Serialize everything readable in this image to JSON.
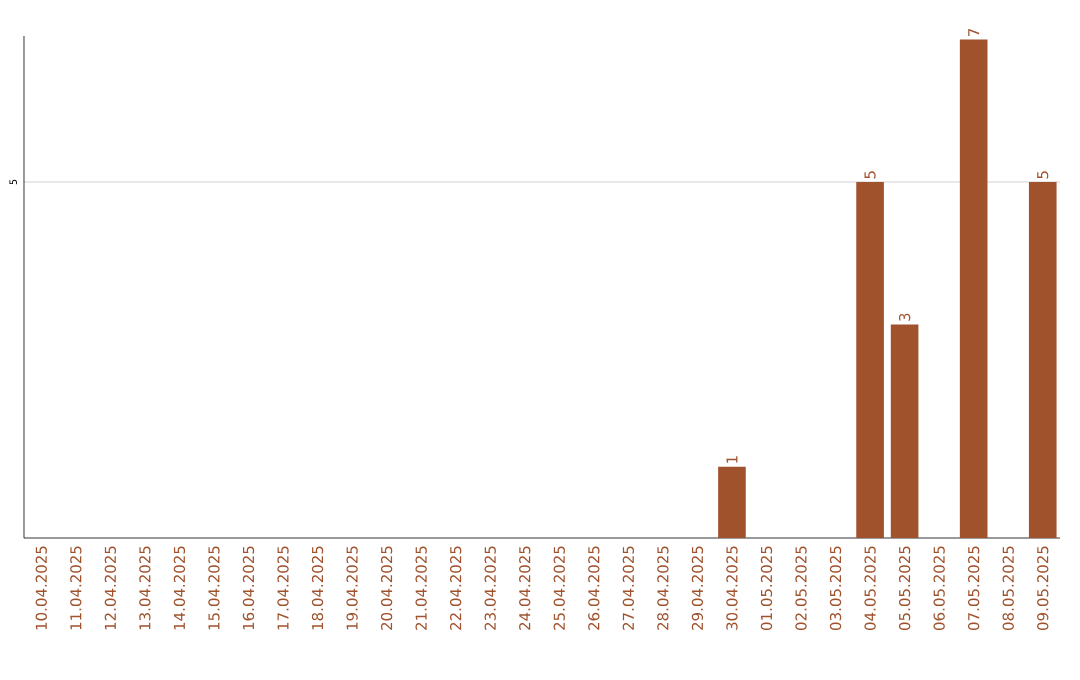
{
  "chart_data": {
    "type": "bar",
    "categories": [
      "10.04.2025",
      "11.04.2025",
      "12.04.2025",
      "13.04.2025",
      "14.04.2025",
      "15.04.2025",
      "16.04.2025",
      "17.04.2025",
      "18.04.2025",
      "19.04.2025",
      "20.04.2025",
      "21.04.2025",
      "22.04.2025",
      "23.04.2025",
      "24.04.2025",
      "25.04.2025",
      "26.04.2025",
      "27.04.2025",
      "28.04.2025",
      "29.04.2025",
      "30.04.2025",
      "01.05.2025",
      "02.05.2025",
      "03.05.2025",
      "04.05.2025",
      "05.05.2025",
      "06.05.2025",
      "07.05.2025",
      "08.05.2025",
      "09.05.2025"
    ],
    "values": [
      null,
      null,
      null,
      null,
      null,
      null,
      null,
      null,
      null,
      null,
      null,
      null,
      null,
      null,
      null,
      null,
      null,
      null,
      null,
      null,
      1,
      null,
      null,
      null,
      5,
      3,
      null,
      7,
      null,
      5
    ],
    "data_labels": true,
    "color": "#a0522d",
    "ylim": [
      0,
      7.05
    ],
    "yticks": [
      5
    ],
    "grid": "y"
  }
}
